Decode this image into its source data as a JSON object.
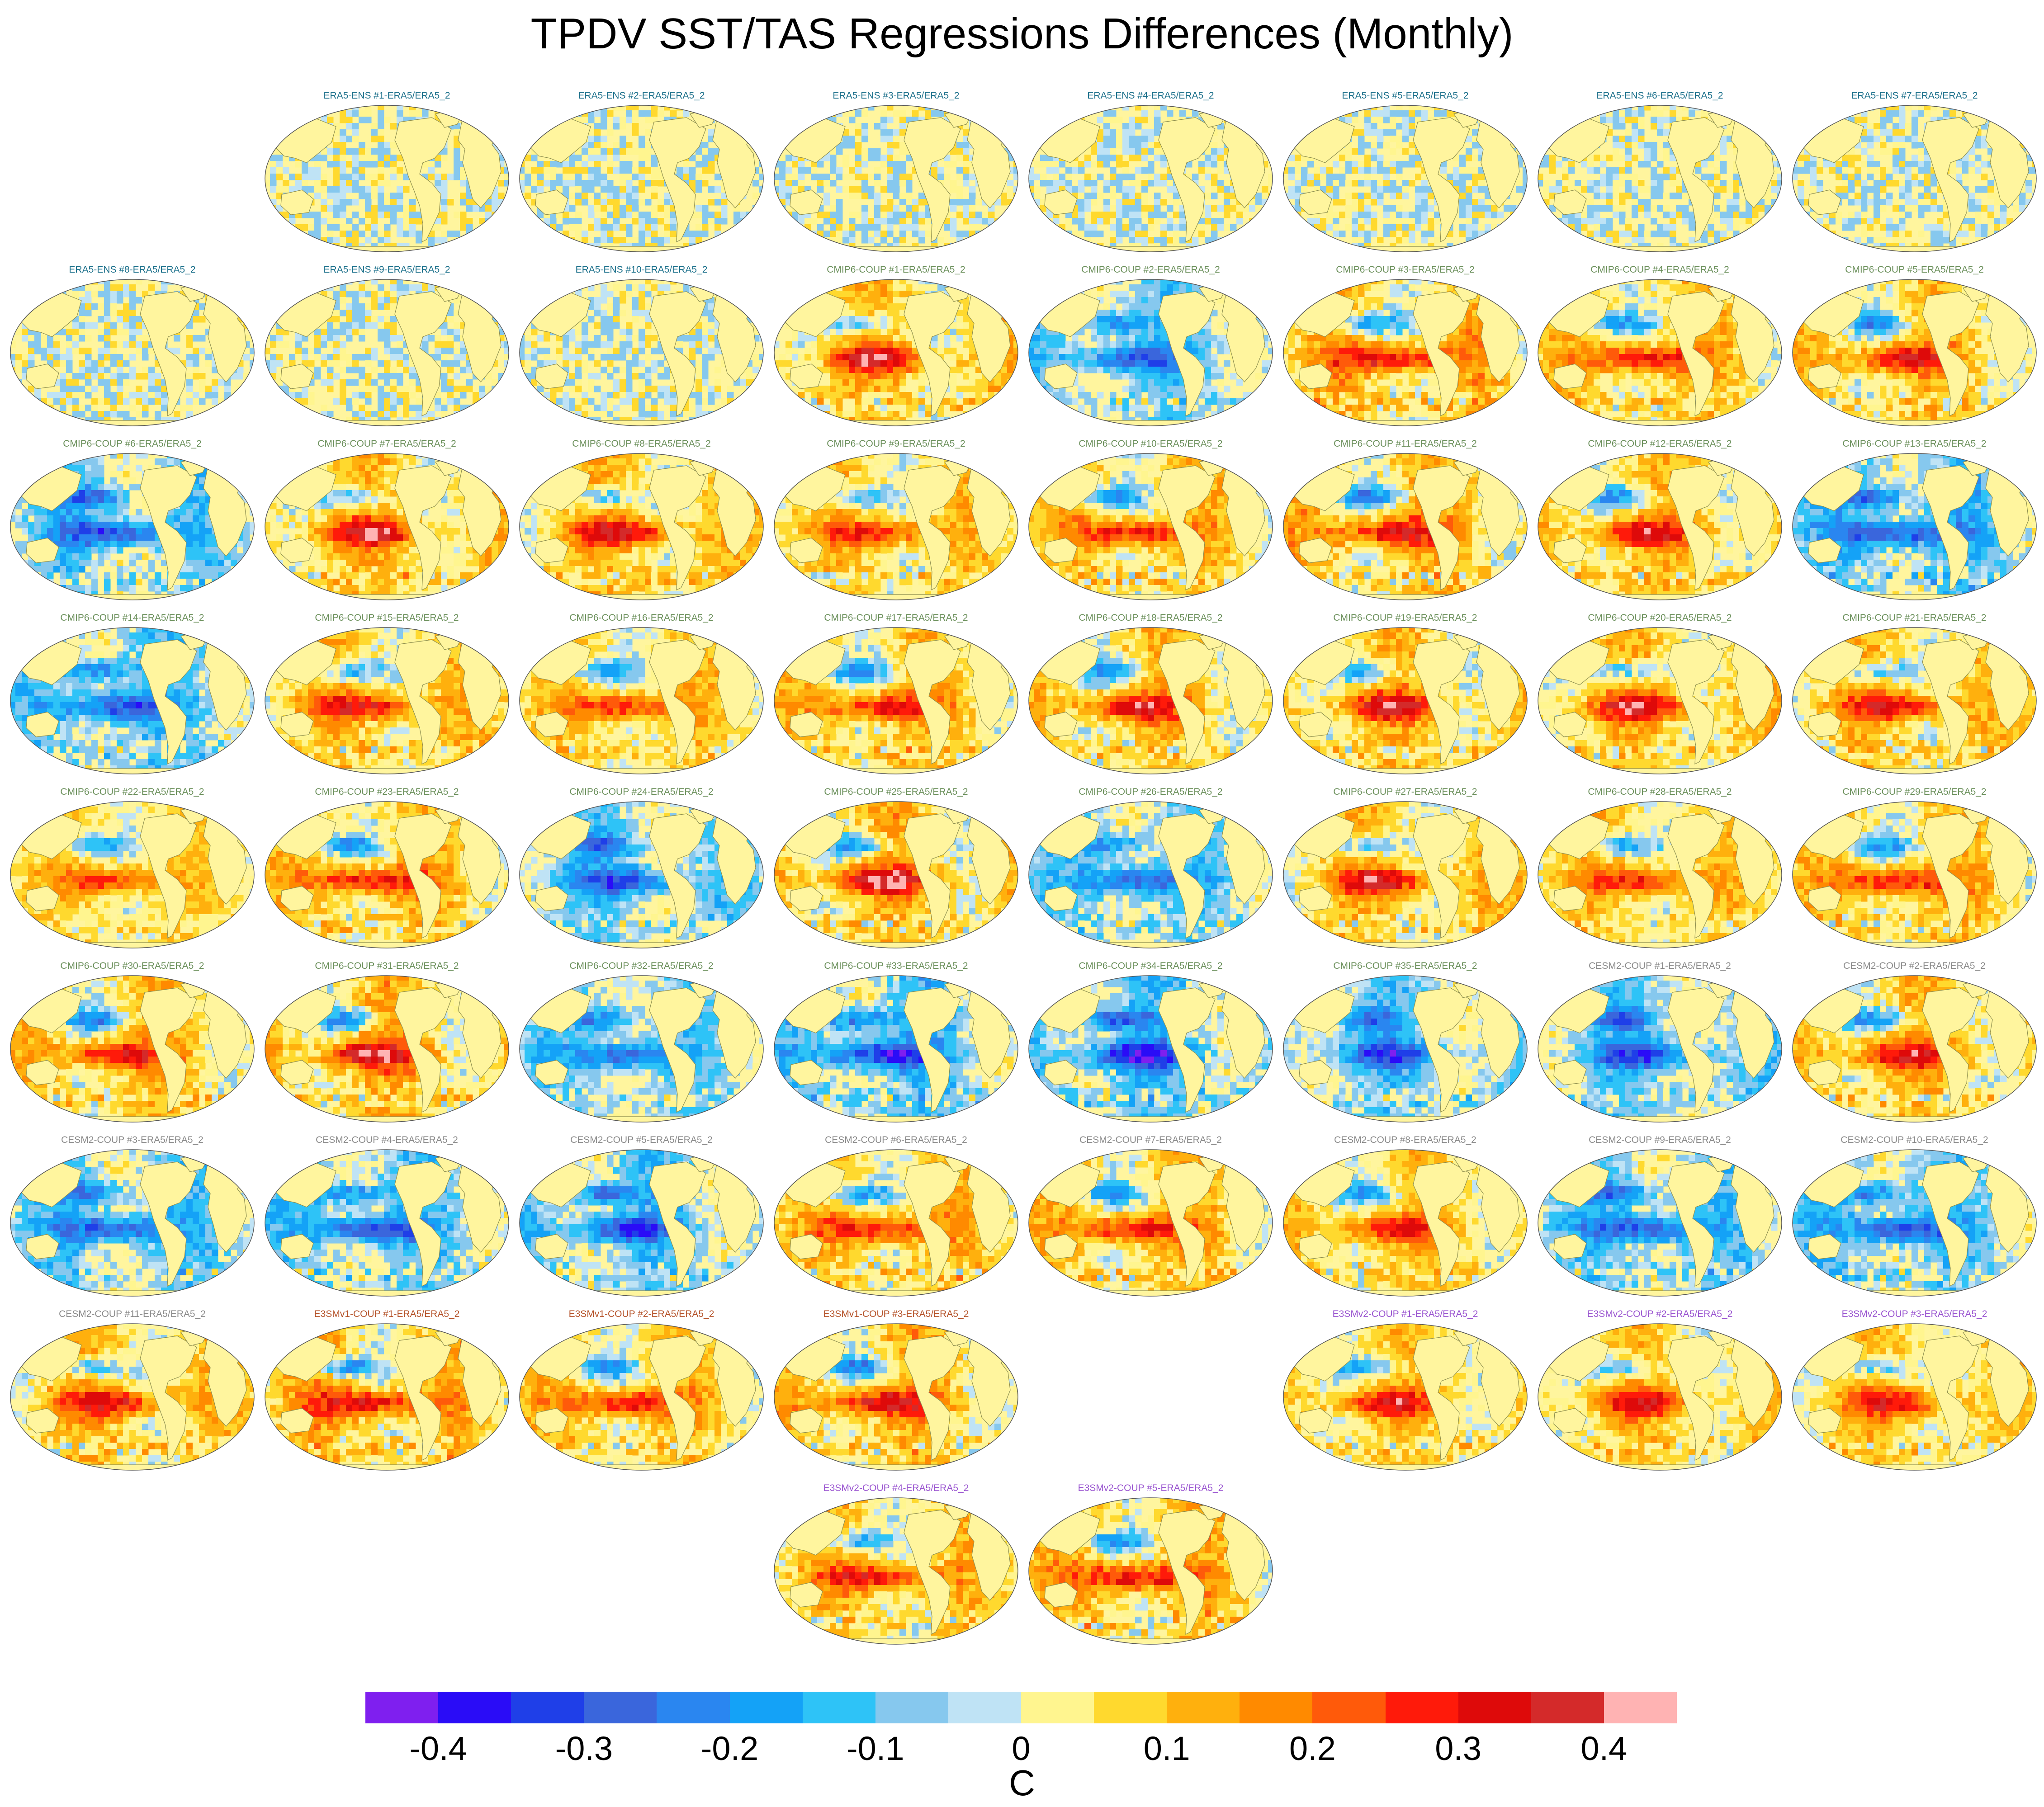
{
  "title": "TPDV SST/TAS Regressions Differences (Monthly)",
  "colors": {
    "ERA5": "#1a6f8a",
    "CMIP6": "#6a8f5a",
    "CESM2": "#8a8a8a",
    "E3SMv1": "#b5532a",
    "E3SMv2": "#9a55d0",
    "land": "#fff59e",
    "coast": "#8d8d4e"
  },
  "panels": [
    {
      "id": "e1",
      "group": "ERA5",
      "label": "ERA5-ENS   #1-ERA5/ERA5_2",
      "pattern": "noise",
      "amp": 0.25
    },
    {
      "id": "e2",
      "group": "ERA5",
      "label": "ERA5-ENS   #2-ERA5/ERA5_2",
      "pattern": "noise",
      "amp": 0.25
    },
    {
      "id": "e3",
      "group": "ERA5",
      "label": "ERA5-ENS   #3-ERA5/ERA5_2",
      "pattern": "noise",
      "amp": 0.25
    },
    {
      "id": "e4",
      "group": "ERA5",
      "label": "ERA5-ENS   #4-ERA5/ERA5_2",
      "pattern": "noise",
      "amp": 0.25
    },
    {
      "id": "e5",
      "group": "ERA5",
      "label": "ERA5-ENS   #5-ERA5/ERA5_2",
      "pattern": "noise",
      "amp": 0.25
    },
    {
      "id": "e6",
      "group": "ERA5",
      "label": "ERA5-ENS   #6-ERA5/ERA5_2",
      "pattern": "noise",
      "amp": 0.25
    },
    {
      "id": "e7",
      "group": "ERA5",
      "label": "ERA5-ENS   #7-ERA5/ERA5_2",
      "pattern": "noise",
      "amp": 0.25
    },
    {
      "id": "e8",
      "group": "ERA5",
      "label": "ERA5-ENS   #8-ERA5/ERA5_2",
      "pattern": "noise",
      "amp": 0.25
    },
    {
      "id": "e9",
      "group": "ERA5",
      "label": "ERA5-ENS   #9-ERA5/ERA5_2",
      "pattern": "noise",
      "amp": 0.25
    },
    {
      "id": "e10",
      "group": "ERA5",
      "label": "ERA5-ENS   #10-ERA5/ERA5_2",
      "pattern": "noise",
      "amp": 0.25
    },
    {
      "id": "c1",
      "group": "CMIP6",
      "label": "CMIP6-COUP   #1-ERA5/ERA5_2",
      "pattern": "warm",
      "amp": 1.0
    },
    {
      "id": "c2",
      "group": "CMIP6",
      "label": "CMIP6-COUP   #2-ERA5/ERA5_2",
      "pattern": "cool",
      "amp": 0.9
    },
    {
      "id": "c3",
      "group": "CMIP6",
      "label": "CMIP6-COUP   #3-ERA5/ERA5_2",
      "pattern": "warm",
      "amp": 1.1
    },
    {
      "id": "c4",
      "group": "CMIP6",
      "label": "CMIP6-COUP   #4-ERA5/ERA5_2",
      "pattern": "warm",
      "amp": 1.0
    },
    {
      "id": "c5",
      "group": "CMIP6",
      "label": "CMIP6-COUP   #5-ERA5/ERA5_2",
      "pattern": "warm",
      "amp": 1.0
    },
    {
      "id": "c6",
      "group": "CMIP6",
      "label": "CMIP6-COUP   #6-ERA5/ERA5_2",
      "pattern": "cool",
      "amp": 1.0
    },
    {
      "id": "c7",
      "group": "CMIP6",
      "label": "CMIP6-COUP   #7-ERA5/ERA5_2",
      "pattern": "warm",
      "amp": 1.0
    },
    {
      "id": "c8",
      "group": "CMIP6",
      "label": "CMIP6-COUP   #8-ERA5/ERA5_2",
      "pattern": "warm",
      "amp": 1.0
    },
    {
      "id": "c9",
      "group": "CMIP6",
      "label": "CMIP6-COUP   #9-ERA5/ERA5_2",
      "pattern": "warm",
      "amp": 0.9
    },
    {
      "id": "c10",
      "group": "CMIP6",
      "label": "CMIP6-COUP   #10-ERA5/ERA5_2",
      "pattern": "warm",
      "amp": 1.0
    },
    {
      "id": "c11",
      "group": "CMIP6",
      "label": "CMIP6-COUP   #11-ERA5/ERA5_2",
      "pattern": "warm",
      "amp": 1.1
    },
    {
      "id": "c12",
      "group": "CMIP6",
      "label": "CMIP6-COUP   #12-ERA5/ERA5_2",
      "pattern": "warm",
      "amp": 1.0
    },
    {
      "id": "c13",
      "group": "CMIP6",
      "label": "CMIP6-COUP   #13-ERA5/ERA5_2",
      "pattern": "cool",
      "amp": 1.1
    },
    {
      "id": "c14",
      "group": "CMIP6",
      "label": "CMIP6-COUP   #14-ERA5/ERA5_2",
      "pattern": "cool",
      "amp": 1.0
    },
    {
      "id": "c15",
      "group": "CMIP6",
      "label": "CMIP6-COUP   #15-ERA5/ERA5_2",
      "pattern": "warm",
      "amp": 1.0
    },
    {
      "id": "c16",
      "group": "CMIP6",
      "label": "CMIP6-COUP   #16-ERA5/ERA5_2",
      "pattern": "warm",
      "amp": 0.9
    },
    {
      "id": "c17",
      "group": "CMIP6",
      "label": "CMIP6-COUP   #17-ERA5/ERA5_2",
      "pattern": "warm",
      "amp": 1.0
    },
    {
      "id": "c18",
      "group": "CMIP6",
      "label": "CMIP6-COUP   #18-ERA5/ERA5_2",
      "pattern": "warm",
      "amp": 1.0
    },
    {
      "id": "c19",
      "group": "CMIP6",
      "label": "CMIP6-COUP   #19-ERA5/ERA5_2",
      "pattern": "warm",
      "amp": 1.0
    },
    {
      "id": "c20",
      "group": "CMIP6",
      "label": "CMIP6-COUP   #20-ERA5/ERA5_2",
      "pattern": "warm",
      "amp": 1.0
    },
    {
      "id": "c21",
      "group": "CMIP6",
      "label": "CMIP6-COUP   #21-ERA5/ERA5_2",
      "pattern": "warm",
      "amp": 1.0
    },
    {
      "id": "c22",
      "group": "CMIP6",
      "label": "CMIP6-COUP   #22-ERA5/ERA5_2",
      "pattern": "warm",
      "amp": 0.8
    },
    {
      "id": "c23",
      "group": "CMIP6",
      "label": "CMIP6-COUP   #23-ERA5/ERA5_2",
      "pattern": "warm",
      "amp": 1.0
    },
    {
      "id": "c24",
      "group": "CMIP6",
      "label": "CMIP6-COUP   #24-ERA5/ERA5_2",
      "pattern": "cool",
      "amp": 0.9
    },
    {
      "id": "c25",
      "group": "CMIP6",
      "label": "CMIP6-COUP   #25-ERA5/ERA5_2",
      "pattern": "warm",
      "amp": 1.1
    },
    {
      "id": "c26",
      "group": "CMIP6",
      "label": "CMIP6-COUP   #26-ERA5/ERA5_2",
      "pattern": "cool",
      "amp": 0.9
    },
    {
      "id": "c27",
      "group": "CMIP6",
      "label": "CMIP6-COUP   #27-ERA5/ERA5_2",
      "pattern": "warm",
      "amp": 1.0
    },
    {
      "id": "c28",
      "group": "CMIP6",
      "label": "CMIP6-COUP   #28-ERA5/ERA5_2",
      "pattern": "warm",
      "amp": 0.9
    },
    {
      "id": "c29",
      "group": "CMIP6",
      "label": "CMIP6-COUP   #29-ERA5/ERA5_2",
      "pattern": "warm",
      "amp": 1.0
    },
    {
      "id": "c30",
      "group": "CMIP6",
      "label": "CMIP6-COUP   #30-ERA5/ERA5_2",
      "pattern": "warm",
      "amp": 1.0
    },
    {
      "id": "c31",
      "group": "CMIP6",
      "label": "CMIP6-COUP   #31-ERA5/ERA5_2",
      "pattern": "warm",
      "amp": 1.1
    },
    {
      "id": "c32",
      "group": "CMIP6",
      "label": "CMIP6-COUP   #32-ERA5/ERA5_2",
      "pattern": "cool",
      "amp": 0.9
    },
    {
      "id": "c33",
      "group": "CMIP6",
      "label": "CMIP6-COUP   #33-ERA5/ERA5_2",
      "pattern": "cool",
      "amp": 1.1
    },
    {
      "id": "c34",
      "group": "CMIP6",
      "label": "CMIP6-COUP   #34-ERA5/ERA5_2",
      "pattern": "cool",
      "amp": 1.1
    },
    {
      "id": "c35",
      "group": "CMIP6",
      "label": "CMIP6-COUP   #35-ERA5/ERA5_2",
      "pattern": "cool",
      "amp": 0.9
    },
    {
      "id": "s1",
      "group": "CESM2",
      "label": "CESM2-COUP   #1-ERA5/ERA5_2",
      "pattern": "cool",
      "amp": 0.9
    },
    {
      "id": "s2",
      "group": "CESM2",
      "label": "CESM2-COUP   #2-ERA5/ERA5_2",
      "pattern": "warm",
      "amp": 1.0
    },
    {
      "id": "s3",
      "group": "CESM2",
      "label": "CESM2-COUP   #3-ERA5/ERA5_2",
      "pattern": "cool",
      "amp": 1.0
    },
    {
      "id": "s4",
      "group": "CESM2",
      "label": "CESM2-COUP   #4-ERA5/ERA5_2",
      "pattern": "cool",
      "amp": 1.0
    },
    {
      "id": "s5",
      "group": "CESM2",
      "label": "CESM2-COUP   #5-ERA5/ERA5_2",
      "pattern": "cool",
      "amp": 1.0
    },
    {
      "id": "s6",
      "group": "CESM2",
      "label": "CESM2-COUP   #6-ERA5/ERA5_2",
      "pattern": "warm",
      "amp": 1.0
    },
    {
      "id": "s7",
      "group": "CESM2",
      "label": "CESM2-COUP   #7-ERA5/ERA5_2",
      "pattern": "warm",
      "amp": 1.0
    },
    {
      "id": "s8",
      "group": "CESM2",
      "label": "CESM2-COUP   #8-ERA5/ERA5_2",
      "pattern": "warm",
      "amp": 0.9
    },
    {
      "id": "s9",
      "group": "CESM2",
      "label": "CESM2-COUP   #9-ERA5/ERA5_2",
      "pattern": "cool",
      "amp": 1.0
    },
    {
      "id": "s10",
      "group": "CESM2",
      "label": "CESM2-COUP   #10-ERA5/ERA5_2",
      "pattern": "cool",
      "amp": 1.0
    },
    {
      "id": "s11",
      "group": "CESM2",
      "label": "CESM2-COUP   #11-ERA5/ERA5_2",
      "pattern": "warm",
      "amp": 1.0
    },
    {
      "id": "v1a",
      "group": "E3SMv1",
      "label": "E3SMv1-COUP #1-ERA5/ERA5_2",
      "pattern": "warm",
      "amp": 1.1
    },
    {
      "id": "v1b",
      "group": "E3SMv1",
      "label": "E3SMv1-COUP #2-ERA5/ERA5_2",
      "pattern": "warm",
      "amp": 1.0
    },
    {
      "id": "v1c",
      "group": "E3SMv1",
      "label": "E3SMv1-COUP #3-ERA5/ERA5_2",
      "pattern": "warm",
      "amp": 1.1
    },
    {
      "id": "v2a",
      "group": "E3SMv2",
      "label": "E3SMv2-COUP #1-ERA5/ERA5_2",
      "pattern": "warm",
      "amp": 0.9
    },
    {
      "id": "v2b",
      "group": "E3SMv2",
      "label": "E3SMv2-COUP #2-ERA5/ERA5_2",
      "pattern": "warm",
      "amp": 0.9
    },
    {
      "id": "v2c",
      "group": "E3SMv2",
      "label": "E3SMv2-COUP #3-ERA5/ERA5_2",
      "pattern": "warm",
      "amp": 0.9
    },
    {
      "id": "v2d",
      "group": "E3SMv2",
      "label": "E3SMv2-COUP #4-ERA5/ERA5_2",
      "pattern": "warm",
      "amp": 1.0
    },
    {
      "id": "v2e",
      "group": "E3SMv2",
      "label": "E3SMv2-COUP #5-ERA5/ERA5_2",
      "pattern": "warm",
      "amp": 1.1
    }
  ],
  "colorbar": {
    "colors": [
      "#7f1fef",
      "#2a0cf7",
      "#1f3fe8",
      "#3a66dc",
      "#2a86f0",
      "#14a2f7",
      "#2ec3f7",
      "#86c8ee",
      "#bfe3f5",
      "#fff58f",
      "#ffd92e",
      "#ffb00d",
      "#ff8a00",
      "#ff5a0a",
      "#ff1a0a",
      "#de0a0a",
      "#d42a2a",
      "#ffb3b3"
    ],
    "ticks": [
      "-0.4",
      "-0.3",
      "-0.2",
      "-0.1",
      "0",
      "0.1",
      "0.2",
      "0.3",
      "0.4"
    ],
    "units": "C"
  }
}
